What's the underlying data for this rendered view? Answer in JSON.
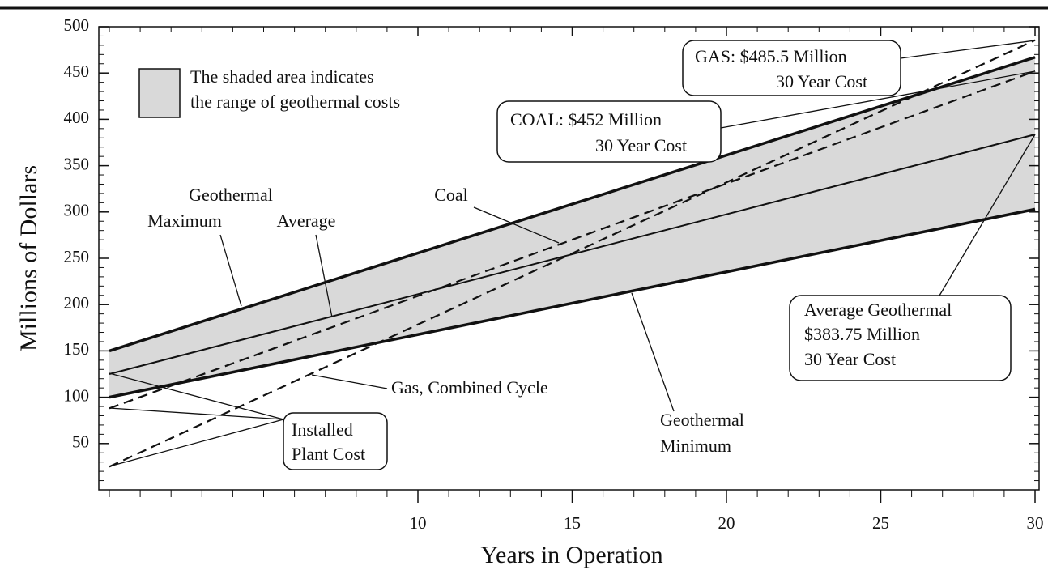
{
  "chart_data": {
    "type": "line",
    "x": [
      0,
      30
    ],
    "xlim": [
      0,
      30
    ],
    "ylim": [
      0,
      500
    ],
    "xticks": [
      10,
      15,
      20,
      25,
      30
    ],
    "yticks": [
      50,
      100,
      150,
      200,
      250,
      300,
      350,
      400,
      450,
      500
    ],
    "xlabel": "Years in Operation",
    "ylabel": "Millions of Dollars",
    "shade_color": "#d9d9d9",
    "series": [
      {
        "color": "#111111",
        "linestyle": "solid",
        "linewidth": 3.5,
        "values": [
          150,
          467
        ]
      },
      {
        "color": "#111111",
        "linestyle": "solid",
        "linewidth": 2,
        "values": [
          125,
          383.75
        ]
      },
      {
        "color": "#111111",
        "linestyle": "solid",
        "linewidth": 3.5,
        "values": [
          100,
          303
        ]
      },
      {
        "color": "#111111",
        "linestyle": "dashed",
        "linewidth": 2.2,
        "values": [
          88,
          452
        ]
      },
      {
        "color": "#111111",
        "linestyle": "dashed",
        "linewidth": 2.2,
        "values": [
          25,
          485.5
        ]
      }
    ],
    "legend": [
      "The shaded area indicates",
      "the range of geothermal costs"
    ],
    "annotations": [
      [
        "Geothermal"
      ],
      [
        "Maximum"
      ],
      [
        "Average"
      ],
      [
        "Coal"
      ],
      [
        "Gas, Combined Cycle"
      ],
      [
        "Geothermal",
        "Minimum"
      ],
      [
        "Installed",
        "Plant Cost"
      ],
      [
        "COAL: $452 Million",
        "30 Year Cost"
      ],
      [
        "GAS: $485.5 Million",
        "30 Year Cost"
      ],
      [
        "Average Geothermal",
        "$383.75 Million",
        "30 Year Cost"
      ]
    ]
  }
}
